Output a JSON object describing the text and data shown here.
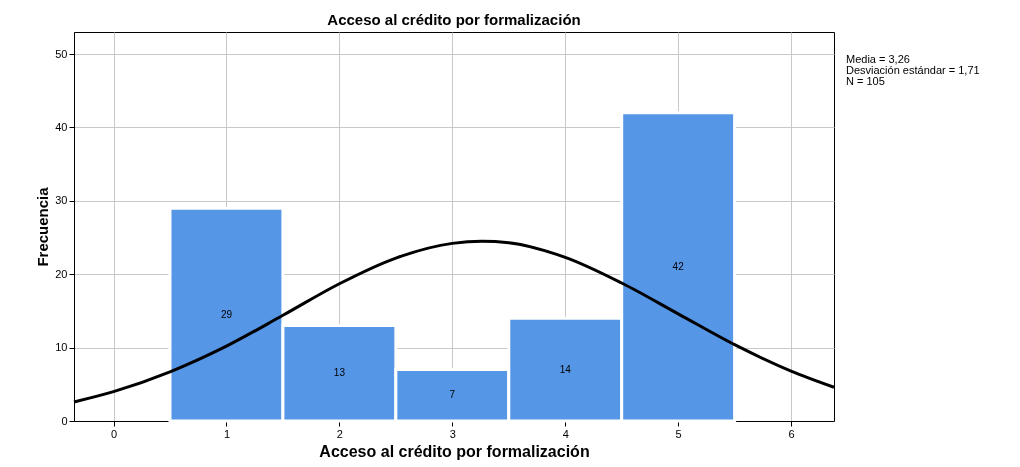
{
  "chart_data": {
    "type": "histogram",
    "title": "Acceso al crédito por formalización",
    "xlabel": "Acceso al crédito por formalización",
    "ylabel": "Frecuencia",
    "bins": [
      0.5,
      1.5,
      2.5,
      3.5,
      4.5,
      5.5
    ],
    "values": [
      29,
      13,
      7,
      14,
      42
    ],
    "color": "#5596e6",
    "value_labels": [
      "29",
      "13",
      "7",
      "14",
      "42"
    ],
    "series": [
      {
        "type": "line",
        "color": "#000000",
        "x": [
          -0.35,
          0,
          0.5,
          1,
          1.5,
          2,
          2.5,
          3,
          3.26,
          3.5,
          4,
          4.5,
          5,
          5.5,
          6,
          6.38
        ],
        "values": [
          2.6,
          4.0,
          6.7,
          10.2,
          14.4,
          18.7,
          22.2,
          24.2,
          24.5,
          24.3,
          22.3,
          18.8,
          14.6,
          10.4,
          6.8,
          4.6
        ]
      }
    ],
    "xlim": [
      -0.35,
      6.38
    ],
    "xticks": [
      0,
      1,
      2,
      3,
      4,
      5,
      6
    ],
    "ylim": [
      0,
      53
    ],
    "yticks": [
      0,
      10,
      20,
      30,
      40,
      50
    ],
    "grid": true,
    "annotations": [
      "Media = 3,26",
      "Desviación estándar = 1,71",
      "N = 105"
    ]
  }
}
